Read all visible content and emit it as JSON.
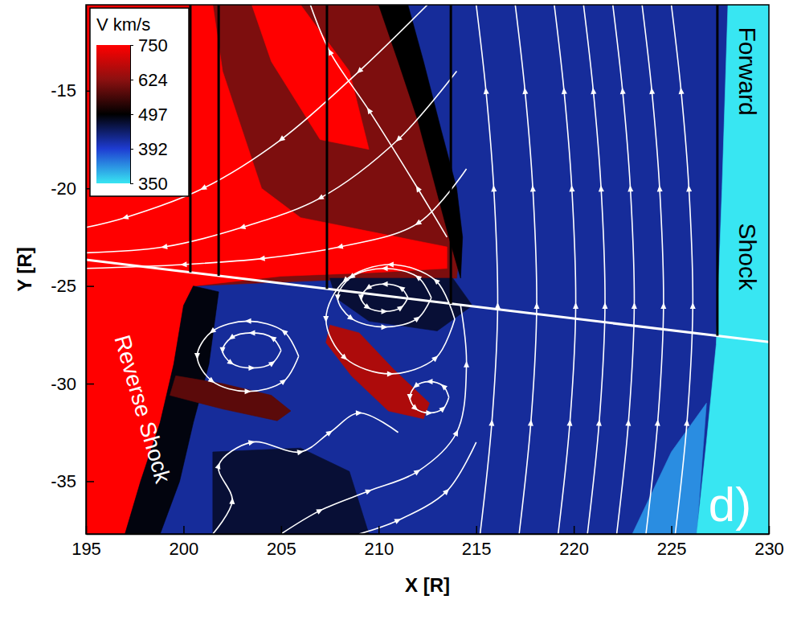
{
  "chart_data": {
    "type": "contour",
    "xlabel": "X [R]",
    "ylabel": "Y [R]",
    "xlim": [
      195,
      230
    ],
    "ylim": [
      -37.7,
      -10.6
    ],
    "xticks": [
      195,
      200,
      205,
      210,
      215,
      220,
      225,
      230
    ],
    "yticks": [
      -15,
      -20,
      -25,
      -30,
      -35
    ],
    "colorbar": {
      "label": "V km/s",
      "range": [
        350,
        750
      ],
      "ticks": [
        750,
        624,
        497,
        392,
        350
      ],
      "colors": [
        "#ff0000",
        "#8c1010",
        "#000000",
        "#1e3cd2",
        "#38e6f2"
      ]
    },
    "regions": [
      {
        "value": 420,
        "x": [
          195,
          230,
          230,
          195
        ],
        "y": [
          -37.7,
          -37.7,
          -10.6,
          -10.6
        ]
      },
      {
        "value": 372,
        "x": [
          223,
          226.3,
          226.8,
          225
        ],
        "y": [
          -37.7,
          -37.7,
          -31,
          -33.5
        ]
      },
      {
        "value": 350,
        "x": [
          226.3,
          230,
          230,
          227.9,
          227.6,
          227.3,
          226.8
        ],
        "y": [
          -37.7,
          -37.7,
          -10.6,
          -10.6,
          -20,
          -28,
          -33
        ]
      },
      {
        "value": 610,
        "x": [
          195,
          211,
          212,
          213,
          213.8,
          214.2,
          214,
          210,
          205,
          200.5,
          200,
          199.5,
          198.8,
          197.8,
          197,
          195
        ],
        "y": [
          -10.6,
          -10.6,
          -14,
          -17,
          -20,
          -22.5,
          -24.6,
          -24.6,
          -24.8,
          -25,
          -26,
          -29,
          -32,
          -35,
          -37.7,
          -37.7
        ]
      },
      {
        "value": 497,
        "x": [
          210.5,
          211.5,
          212.3,
          213.2,
          214,
          214.3,
          214.2,
          213.6,
          212.8,
          212,
          211,
          210
        ],
        "y": [
          -10.6,
          -10.6,
          -13.5,
          -17,
          -20,
          -22.5,
          -24.6,
          -22.5,
          -19.5,
          -16.5,
          -13.5,
          -10.6
        ]
      },
      {
        "value": 760,
        "x": [
          203.5,
          206,
          208.5,
          209.5,
          207,
          204.5
        ],
        "y": [
          -10.6,
          -10.6,
          -14,
          -18,
          -17.5,
          -13.5
        ]
      },
      {
        "value": 780,
        "x": [
          195,
          201.5,
          202,
          203,
          204,
          206,
          210,
          213.5,
          213.5,
          210,
          205,
          200.5,
          200,
          199.5,
          198.8,
          197.8,
          197,
          195
        ],
        "y": [
          -10.6,
          -10.6,
          -14,
          -17,
          -20,
          -21.5,
          -22.3,
          -23,
          -24.1,
          -24.3,
          -24.5,
          -25,
          -26,
          -29,
          -32,
          -35,
          -37.7,
          -37.7
        ]
      },
      {
        "value": 490,
        "x": [
          200.5,
          201.8,
          201.3,
          200.5,
          199.8,
          198.8,
          197,
          197.8,
          198.8,
          199.5,
          200
        ],
        "y": [
          -25,
          -25.3,
          -29,
          -32,
          -35,
          -37.7,
          -37.7,
          -35,
          -32,
          -29,
          -26
        ]
      },
      {
        "value": 580,
        "x": [
          199.6,
          202,
          204.5,
          205.5,
          204.8,
          202,
          199.3
        ],
        "y": [
          -29.6,
          -30,
          -30.6,
          -31.4,
          -31.9,
          -31.3,
          -30.6
        ]
      },
      {
        "value": 660,
        "x": [
          207.5,
          209,
          210.8,
          212.6,
          212.3,
          210.5,
          208.6,
          207.3
        ],
        "y": [
          -27,
          -27.4,
          -29.3,
          -31,
          -31.8,
          -31.4,
          -29.6,
          -27.9
        ]
      },
      {
        "value": 470,
        "x": [
          201.5,
          206,
          208.5,
          209.5,
          201.5
        ],
        "y": [
          -33.5,
          -33.3,
          -34.5,
          -37.7,
          -37.7
        ]
      },
      {
        "value": 470,
        "x": [
          207.5,
          213.8,
          214.8,
          213,
          209.5,
          207.8
        ],
        "y": [
          -24.6,
          -24.6,
          -26,
          -27.3,
          -26.8,
          -25.6
        ]
      }
    ],
    "streamlines": [
      {
        "x": [
          215.2,
          215.8,
          216.1,
          215.9,
          215.5,
          215.0
        ],
        "y": [
          -37.7,
          -32,
          -26,
          -20,
          -15,
          -10.6
        ]
      },
      {
        "x": [
          217.2,
          217.8,
          218.1,
          217.9,
          217.5,
          217.0
        ],
        "y": [
          -37.7,
          -32,
          -26,
          -20,
          -15,
          -10.6
        ]
      },
      {
        "x": [
          219.2,
          219.8,
          220.1,
          219.9,
          219.5,
          219.0
        ],
        "y": [
          -37.7,
          -32,
          -26,
          -20,
          -15,
          -10.6
        ]
      },
      {
        "x": [
          220.7,
          221.3,
          221.6,
          221.4,
          221.0,
          220.5
        ],
        "y": [
          -37.7,
          -32,
          -26,
          -20,
          -15,
          -10.6
        ]
      },
      {
        "x": [
          222.2,
          222.8,
          223.1,
          222.9,
          222.5,
          222.0
        ],
        "y": [
          -37.7,
          -32,
          -26,
          -20,
          -15,
          -10.6
        ]
      },
      {
        "x": [
          223.7,
          224.3,
          224.6,
          224.4,
          224.0,
          223.5
        ],
        "y": [
          -37.7,
          -32,
          -26,
          -20,
          -15,
          -10.6
        ]
      },
      {
        "x": [
          225.2,
          225.8,
          226.1,
          225.9,
          225.5,
          225.0
        ],
        "y": [
          -37.7,
          -32,
          -26,
          -20,
          -15,
          -10.6
        ]
      },
      {
        "x": [
          212.5,
          209,
          205,
          201,
          197,
          195
        ],
        "y": [
          -10.6,
          -14,
          -17.5,
          -20,
          -21.5,
          -22
        ]
      },
      {
        "x": [
          214,
          211,
          207,
          203,
          199,
          195
        ],
        "y": [
          -14,
          -17.5,
          -20.5,
          -22,
          -23,
          -23.3
        ]
      },
      {
        "x": [
          214.5,
          212,
          208,
          204,
          200,
          195
        ],
        "y": [
          -19,
          -21.8,
          -23,
          -23.6,
          -23.9,
          -24.1
        ]
      },
      {
        "x": [
          213.5,
          212,
          209.5,
          207.5,
          206.5
        ],
        "y": [
          -22.5,
          -20,
          -16,
          -13,
          -10.6
        ]
      },
      {
        "x": [
          211.5,
          211.15,
          210.3,
          209.45,
          209.1,
          209.45,
          210.3,
          211.15,
          211.5
        ],
        "y": [
          -25.6,
          -25.1,
          -24.9,
          -25.1,
          -25.6,
          -26.1,
          -26.3,
          -26.1,
          -25.6
        ]
      },
      {
        "x": [
          212.7,
          212.0,
          210.3,
          208.6,
          207.9,
          208.6,
          210.3,
          212.0,
          212.7
        ],
        "y": [
          -25.6,
          -24.54,
          -24.1,
          -24.54,
          -25.6,
          -26.66,
          -27.1,
          -26.66,
          -25.6
        ]
      },
      {
        "x": [
          213.9,
          212.93,
          210.6,
          208.27,
          207.3,
          208.27,
          210.6,
          212.93,
          213.9
        ],
        "y": [
          -26.7,
          -24.72,
          -23.9,
          -24.72,
          -26.7,
          -28.68,
          -29.5,
          -28.68,
          -26.7
        ]
      },
      {
        "x": [
          205,
          204.56,
          203.5,
          202.44,
          202,
          202.44,
          203.5,
          204.56,
          205
        ],
        "y": [
          -28.3,
          -27.66,
          -27.4,
          -27.66,
          -28.3,
          -28.94,
          -29.2,
          -28.94,
          -28.3
        ]
      },
      {
        "x": [
          205.9,
          205.14,
          203.3,
          201.46,
          200.7,
          201.46,
          203.3,
          205.14,
          205.9
        ],
        "y": [
          -28.6,
          -27.33,
          -26.8,
          -27.33,
          -28.6,
          -29.87,
          -30.4,
          -29.87,
          -28.6
        ]
      },
      {
        "x": [
          213.6,
          213.31,
          212.6,
          211.89,
          211.6,
          211.89,
          212.6,
          213.31,
          213.6
        ],
        "y": [
          -30.7,
          -30.13,
          -29.9,
          -30.13,
          -30.7,
          -31.27,
          -31.5,
          -31.27,
          -30.7
        ]
      },
      {
        "x": [
          201.5,
          202.5,
          201.8,
          203.5,
          206,
          207.5,
          209,
          211
        ],
        "y": [
          -37.7,
          -36,
          -34.2,
          -33,
          -33.5,
          -32.5,
          -31.5,
          -32.5
        ]
      },
      {
        "x": [
          205,
          207,
          209.5,
          212,
          214,
          214.5,
          214.2
        ],
        "y": [
          -37.7,
          -36.5,
          -35.5,
          -34.5,
          -32.5,
          -29,
          -26
        ]
      },
      {
        "x": [
          209,
          211,
          213.5,
          215
        ],
        "y": [
          -37.7,
          -37,
          -35.5,
          -33
        ]
      }
    ],
    "cuts": {
      "x": [
        200.35,
        201.8,
        207.35,
        213.7,
        227.36
      ],
      "y_end": [
        -24.3,
        -24.48,
        -25.15,
        -25.91,
        -27.55
      ]
    },
    "trajectory": {
      "x": [
        195,
        230
      ],
      "y": [
        -23.66,
        -27.87
      ]
    },
    "annotations": [
      {
        "text": "Forward",
        "x": 228.9,
        "y": -14,
        "color": "#000000"
      },
      {
        "text": "Shock",
        "x": 228.9,
        "y": -23.5,
        "color": "#000000"
      },
      {
        "text": "Reverse Shock",
        "x": 197.9,
        "y": -31.3,
        "color": "#ffffff"
      },
      {
        "text": "d)",
        "x": 228,
        "y": -36.2,
        "color": "#ffffff"
      }
    ]
  }
}
